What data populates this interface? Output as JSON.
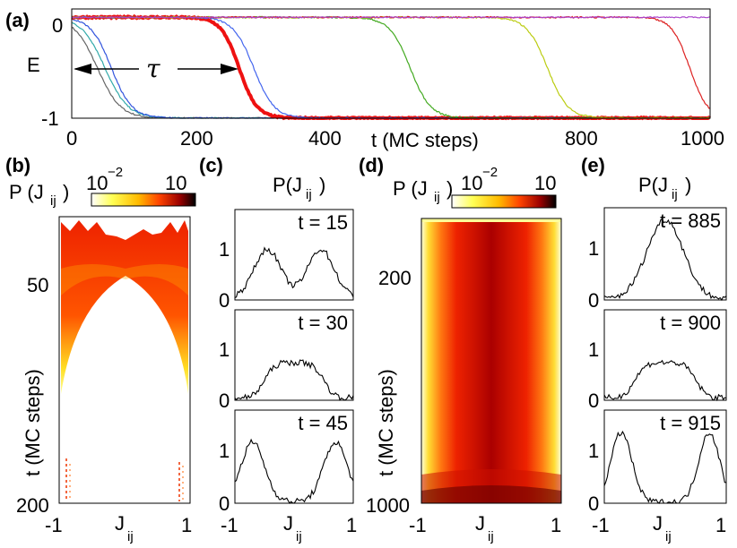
{
  "panels": {
    "a": {
      "label": "(a)",
      "ylabel": "E",
      "xlabel": "t (MC steps)",
      "tau": "τ",
      "xticks": [
        "0",
        "200",
        "400",
        "600",
        "800",
        "1000"
      ],
      "yticks": [
        "0",
        "-1"
      ]
    },
    "b": {
      "label": "(b)",
      "cbar_label": "P (J",
      "cbar_sub": "ij",
      "cbar_close": ")",
      "cbar_min": "10",
      "cbar_min_exp": "−2",
      "cbar_max": "10",
      "ylabel": "t (MC steps)",
      "yticks": [
        "50",
        "200"
      ],
      "xticks": [
        "-1",
        "1"
      ],
      "xlabel": "J",
      "xlabel_sub": "ij"
    },
    "c": {
      "label": "(c)",
      "title": "P(J",
      "title_sub": "ij",
      "title_close": ")",
      "subplots": [
        {
          "t": "t = 15",
          "yticks": [
            "1",
            "0"
          ]
        },
        {
          "t": "t = 30",
          "yticks": [
            "1",
            "0"
          ]
        },
        {
          "t": "t = 45",
          "yticks": [
            "1",
            "0"
          ]
        }
      ],
      "xticks": [
        "-1",
        "1"
      ],
      "xlabel": "J",
      "xlabel_sub": "ij"
    },
    "d": {
      "label": "(d)",
      "cbar_label": "P (J",
      "cbar_sub": "ij",
      "cbar_close": ")",
      "cbar_min": "10",
      "cbar_min_exp": "−2",
      "cbar_max": "10",
      "ylabel": "t (MC steps)",
      "yticks": [
        "200",
        "1000"
      ],
      "xticks": [
        "-1",
        "1"
      ],
      "xlabel": "J",
      "xlabel_sub": "ij"
    },
    "e": {
      "label": "(e)",
      "title": "P(J",
      "title_sub": "ij",
      "title_close": ")",
      "subplots": [
        {
          "t": "t = 885",
          "yticks": [
            "1",
            "0"
          ]
        },
        {
          "t": "t = 900",
          "yticks": [
            "1",
            "0"
          ]
        },
        {
          "t": "t = 915",
          "yticks": [
            "1",
            "0"
          ]
        }
      ],
      "xticks": [
        "-1",
        "1"
      ],
      "xlabel": "J",
      "xlabel_sub": "ij"
    }
  },
  "chart_data": [
    {
      "type": "line",
      "panel": "a",
      "xlabel": "t (MC steps)",
      "ylabel": "E",
      "xlim": [
        0,
        1000
      ],
      "ylim": [
        -1,
        0.05
      ],
      "series": [
        {
          "name": "run-grey",
          "color": "#666666",
          "t_drop": 40,
          "width": 18
        },
        {
          "name": "run-cyan",
          "color": "#33aaaa",
          "t_drop": 52,
          "width": 18
        },
        {
          "name": "run-blue-early",
          "color": "#3355dd",
          "t_drop": 62,
          "width": 16
        },
        {
          "name": "run-red-thick",
          "color": "#ee1111",
          "t_drop": 262,
          "width": 14
        },
        {
          "name": "run-blue",
          "color": "#4466ee",
          "t_drop": 285,
          "width": 16
        },
        {
          "name": "run-green",
          "color": "#44aa22",
          "t_drop": 530,
          "width": 16
        },
        {
          "name": "run-yellowgreen",
          "color": "#bbcc11",
          "t_drop": 745,
          "width": 16
        },
        {
          "name": "run-red-late",
          "color": "#dd2222",
          "t_drop": 968,
          "width": 14
        },
        {
          "name": "run-purple",
          "color": "#aa44cc",
          "t_drop": null,
          "width": 0
        }
      ],
      "annotation": {
        "text": "τ",
        "from": 0,
        "to": 262,
        "y": -0.52
      }
    },
    {
      "type": "heatmap",
      "panel": "b",
      "xlim": [
        -1,
        1
      ],
      "ylim": [
        200,
        0
      ],
      "colormap": [
        "#ffffff",
        "#ffff66",
        "#ffcc00",
        "#ff6600",
        "#ee1100",
        "#880000",
        "#000000"
      ]
    },
    {
      "type": "line",
      "panel": "c",
      "xlim": [
        -1,
        1
      ],
      "ylim": [
        0,
        1.8
      ],
      "series": [
        {
          "name": "t = 15",
          "shape": "bimodal",
          "peaks": [
            -0.45,
            0.45
          ],
          "height": 0.95,
          "sigma": 0.22,
          "floor": 0.06
        },
        {
          "name": "t = 30",
          "shape": "flat",
          "height": 0.75,
          "sigma": 0.55,
          "floor": 0.05
        },
        {
          "name": "t = 45",
          "shape": "bimodal-edge",
          "peaks": [
            -0.7,
            0.7
          ],
          "height": 1.15,
          "sigma": 0.2,
          "floor": 0.03
        }
      ]
    },
    {
      "type": "heatmap",
      "panel": "d",
      "xlim": [
        -1,
        1
      ],
      "ylim": [
        1000,
        0
      ],
      "colormap": [
        "#ffffff",
        "#ffff66",
        "#ffcc00",
        "#ff6600",
        "#ee1100",
        "#880000",
        "#000000"
      ]
    },
    {
      "type": "line",
      "panel": "e",
      "xlim": [
        -1,
        1
      ],
      "ylim": [
        0,
        1.8
      ],
      "series": [
        {
          "name": "t = 885",
          "shape": "unimodal",
          "peaks": [
            0.0
          ],
          "height": 1.55,
          "sigma": 0.3,
          "floor": 0.02
        },
        {
          "name": "t = 900",
          "shape": "flat",
          "height": 0.75,
          "sigma": 0.55,
          "floor": 0.05
        },
        {
          "name": "t = 915",
          "shape": "bimodal-edge",
          "peaks": [
            -0.72,
            0.72
          ],
          "height": 1.35,
          "sigma": 0.17,
          "floor": 0.02
        }
      ]
    }
  ]
}
